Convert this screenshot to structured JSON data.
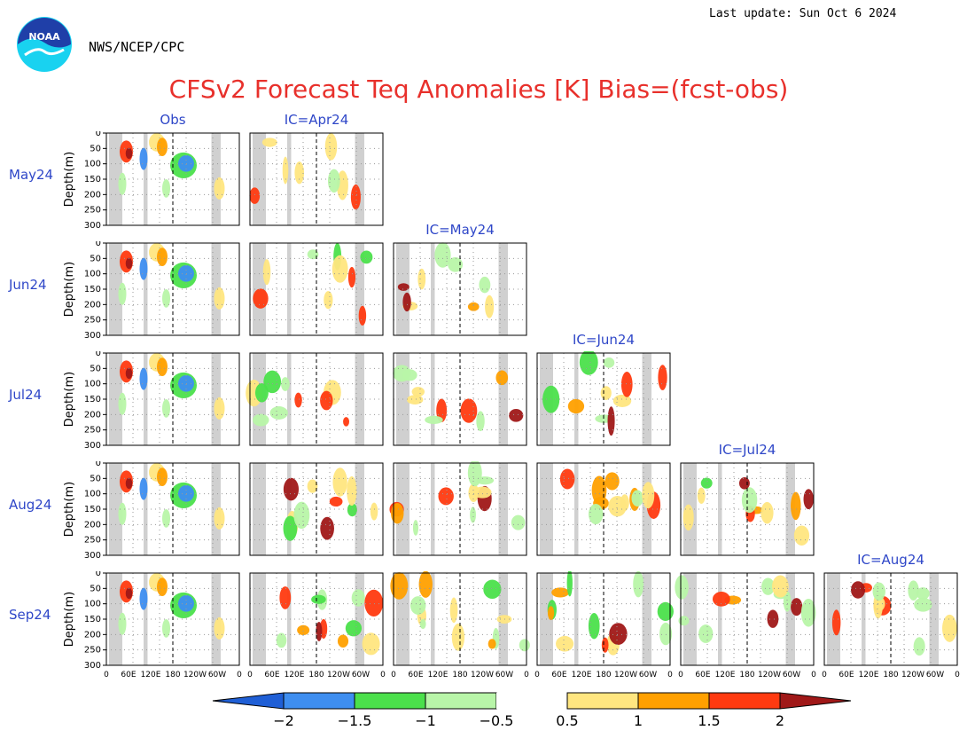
{
  "header": {
    "last_update": "Last update: Sun Oct 6 2024",
    "org": "NWS/NCEP/CPC",
    "title": "CFSv2 Forecast Teq Anomalies [K] Bias=(fcst-obs)",
    "logo_text": "NOAA"
  },
  "colors": {
    "title": "#e8302b",
    "labels": "#2f47c8",
    "land_mask": "#d0d0d0"
  },
  "chart_data": {
    "type": "heatmap",
    "title": "CFSv2 Forecast Teq Anomalies [K] Bias=(fcst-obs)",
    "ylabel": "Depth(m)",
    "y_ticks": [
      "0",
      "50",
      "100",
      "150",
      "200",
      "250",
      "300"
    ],
    "x_ticks": [
      "0",
      "60E",
      "120E",
      "180",
      "120W",
      "60W",
      "0"
    ],
    "ylim": [
      0,
      300
    ],
    "columns": [
      "Obs",
      "IC=Apr24",
      "IC=May24",
      "IC=Jun24",
      "IC=Jul24",
      "IC=Aug24"
    ],
    "rows": [
      "May24",
      "Jun24",
      "Jul24",
      "Aug24",
      "Sep24"
    ],
    "legend": {
      "ticks": [
        "−2",
        "−1.5",
        "−1",
        "−0.5",
        "0.5",
        "1",
        "1.5",
        "2"
      ],
      "colors": [
        "#1f5fd6",
        "#3e8ef0",
        "#4be04b",
        "#b8f5a8",
        "#ffffff",
        "#ffe680",
        "#ffa000",
        "#ff3a10",
        "#a01818"
      ]
    }
  }
}
